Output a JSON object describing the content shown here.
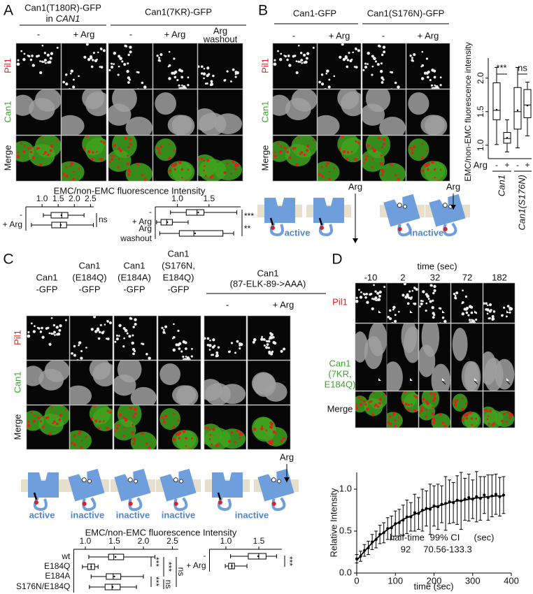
{
  "panel_A": {
    "letter": "A",
    "header1": [
      "Can1(T180R)-GFP",
      "in",
      "CAN1"
    ],
    "header2": "Can1(7KR)-GFP",
    "columns": [
      "-",
      "+ Arg",
      "-",
      "+ Arg"
    ],
    "header3": [
      "Arg",
      "washout"
    ],
    "rows": [
      "Pil1",
      "Can1",
      "Merge"
    ],
    "plot_title": "EMC/non-EMC fluorescence Intensity",
    "plots": [
      {
        "type": "box",
        "categories": [
          "-",
          "+ Arg"
        ],
        "xlim": [
          0.5,
          2.6
        ],
        "xticks": [
          {
            "value": 1,
            "label": "1.0"
          },
          1.5,
          {
            "value": 2,
            "label": "2.0"
          },
          2.5
        ],
        "boxes": [
          {
            "low": 1.04,
            "q1": 1.28,
            "median": 1.61,
            "q3": 1.8,
            "high": 2.3,
            "mean": 1.6
          },
          {
            "low": 0.67,
            "q1": 1.3,
            "median": 1.57,
            "q3": 1.76,
            "high": 2.59,
            "mean": 1.58
          }
        ],
        "annotations": [
          "ns"
        ]
      },
      {
        "type": "box",
        "categories": [
          "-",
          "+ Arg",
          [
            "Arg",
            "washout"
          ]
        ],
        "xlim": [
          0.65,
          2.0
        ],
        "xticks": [
          {
            "value": 1,
            "label": "1.0"
          },
          1.5
        ],
        "boxes": [
          {
            "low": 0.89,
            "q1": 1.14,
            "median": 1.31,
            "q3": 1.42,
            "high": 1.94,
            "mean": 1.33
          },
          {
            "low": 0.67,
            "q1": 0.74,
            "median": 0.83,
            "q3": 0.92,
            "high": 1.17,
            "mean": 0.84
          },
          {
            "low": 0.72,
            "q1": 1.03,
            "median": 1.26,
            "q3": 1.72,
            "high": 1.89,
            "mean": 1.28
          }
        ],
        "annotations": [
          "***",
          "**"
        ]
      }
    ]
  },
  "panel_B": {
    "letter": "B",
    "headers": [
      "Can1-GFP",
      "Can1(S176N)-GFP"
    ],
    "columns": [
      "-",
      "+ Arg",
      "-",
      "+ Arg"
    ],
    "rows": [
      "Pil1",
      "Can1",
      "Merge"
    ],
    "diagram": {
      "arg": [
        "Arg",
        "Arg"
      ],
      "labels": [
        "active",
        "inactive"
      ]
    },
    "plot": {
      "type": "box",
      "orientation": "vertical",
      "ylabel": "EMC/non-EMC fluorescence intensity",
      "ylim": [
        0.8,
        2.3
      ],
      "yticks": [
        {
          "value": 1,
          "label": "1.0"
        },
        1.5,
        {
          "value": 2,
          "label": "2.0"
        }
      ],
      "row_label": "Arg",
      "categories": [
        "-",
        "+",
        "-",
        "+"
      ],
      "groups": [
        "Can1",
        "Can1(S176N)"
      ],
      "boxes": [
        {
          "low": 1.01,
          "q1": 1.38,
          "median": 1.52,
          "q3": 1.93,
          "high": 2.16,
          "mean": 1.53
        },
        {
          "low": 0.9,
          "q1": 1.03,
          "median": 1.1,
          "q3": 1.19,
          "high": 1.38,
          "mean": 1.11
        },
        {
          "low": 0.96,
          "q1": 1.24,
          "median": 1.5,
          "q3": 1.86,
          "high": 2.16,
          "mean": 1.52
        },
        {
          "low": 1.14,
          "q1": 1.41,
          "median": 1.6,
          "q3": 1.83,
          "high": 1.94,
          "mean": 1.59
        }
      ],
      "annotations": [
        "***",
        "ns"
      ]
    }
  },
  "panel_C": {
    "letter": "C",
    "headers": [
      [
        "Can1",
        "-GFP"
      ],
      [
        "Can1",
        "(E184Q)",
        "-GFP"
      ],
      [
        "Can1",
        "(E184A)",
        "-GFP"
      ],
      [
        "Can1",
        "(S176N,",
        "E184Q)",
        "-GFP"
      ]
    ],
    "header5": [
      "Can1",
      "(87-ELK-89->AAA)"
    ],
    "columns": [
      "-",
      "+ Arg"
    ],
    "rows": [
      "Pil1",
      "Can1",
      "Merge"
    ],
    "diagram": {
      "arg": "Arg",
      "labels": [
        "active",
        "inactive",
        "inactive",
        "inactive",
        "inactive"
      ]
    },
    "plot_title": "EMC/non-EMC fluorescence Intensity",
    "plots": [
      {
        "type": "box",
        "categories": [
          "wt",
          "E184Q",
          "E184A",
          "S176N/E184Q"
        ],
        "xlim": [
          0.8,
          2.6
        ],
        "xticks": [
          {
            "value": 1,
            "label": "1.0"
          },
          1.5,
          {
            "value": 2,
            "label": "2.0"
          },
          2.5
        ],
        "boxes": [
          {
            "low": 1.06,
            "q1": 1.4,
            "median": 1.49,
            "q3": 1.66,
            "high": 2.2,
            "mean": 1.52
          },
          {
            "low": 0.95,
            "q1": 1.04,
            "median": 1.1,
            "q3": 1.16,
            "high": 1.22,
            "mean": 1.1
          },
          {
            "low": 1.1,
            "q1": 1.36,
            "median": 1.48,
            "q3": 1.61,
            "high": 2.0,
            "mean": 1.5
          },
          {
            "low": 1.07,
            "q1": 1.34,
            "median": 1.46,
            "q3": 1.6,
            "high": 1.88,
            "mean": 1.47
          }
        ],
        "annotations": [
          "***",
          "***",
          "ns",
          "***",
          "ns"
        ]
      },
      {
        "type": "box",
        "categories": [
          "-",
          "+ Arg"
        ],
        "xlim": [
          0.75,
          1.85
        ],
        "xticks": [
          {
            "value": 1,
            "label": "1.0"
          },
          1.5
        ],
        "boxes": [
          {
            "low": 1.07,
            "q1": 1.34,
            "median": 1.5,
            "q3": 1.61,
            "high": 1.77,
            "mean": 1.49
          },
          {
            "low": 0.99,
            "q1": 1.04,
            "median": 1.09,
            "q3": 1.13,
            "high": 1.32,
            "mean": 1.09
          }
        ],
        "annotations": [
          "***"
        ]
      }
    ]
  },
  "panel_D": {
    "letter": "D",
    "time_label": "time (sec)",
    "times": [
      -10,
      2,
      32,
      72,
      182
    ],
    "rows": [
      [
        "Pil1"
      ],
      [
        "Can1",
        "(7KR,",
        "E184Q)"
      ],
      [
        "Merge"
      ]
    ],
    "chart": {
      "type": "errorbar",
      "xlabel": "time (sec)",
      "ylabel": "Relative Intensity",
      "xlim": [
        0,
        400
      ],
      "xticks": [
        0,
        100,
        200,
        300,
        400
      ],
      "ylim": [
        0,
        1.2
      ],
      "yticks": [
        {
          "value": 0,
          "label": "0.0"
        },
        0.5,
        {
          "value": 1,
          "label": "1.0"
        }
      ],
      "x": [
        0,
        10,
        20,
        30,
        40,
        50,
        60,
        70,
        80,
        90,
        100,
        110,
        120,
        130,
        140,
        150,
        160,
        170,
        180,
        190,
        200,
        210,
        220,
        230,
        240,
        250,
        260,
        270,
        280,
        290,
        300,
        310,
        320,
        330,
        340,
        350,
        360,
        370,
        380
      ],
      "values": [
        0.17,
        0.2,
        0.27,
        0.3,
        0.37,
        0.4,
        0.46,
        0.48,
        0.53,
        0.54,
        0.59,
        0.6,
        0.63,
        0.67,
        0.67,
        0.72,
        0.71,
        0.75,
        0.77,
        0.76,
        0.8,
        0.79,
        0.82,
        0.83,
        0.85,
        0.84,
        0.87,
        0.86,
        0.88,
        0.9,
        0.88,
        0.91,
        0.89,
        0.93,
        0.9,
        0.92,
        0.94,
        0.91,
        0.93
      ],
      "errors": [
        0.05,
        0.06,
        0.07,
        0.08,
        0.09,
        0.1,
        0.11,
        0.12,
        0.13,
        0.14,
        0.15,
        0.16,
        0.18,
        0.2,
        0.17,
        0.22,
        0.19,
        0.25,
        0.21,
        0.3,
        0.24,
        0.27,
        0.22,
        0.32,
        0.26,
        0.24,
        0.29,
        0.34,
        0.25,
        0.28,
        0.23,
        0.3,
        0.26,
        0.22,
        0.27,
        0.25,
        0.24,
        0.23,
        0.22
      ],
      "fit": {
        "x": [
          0,
          20,
          40,
          60,
          80,
          100,
          120,
          140,
          160,
          180,
          200,
          220,
          240,
          260,
          280,
          300,
          320,
          340,
          360,
          380
        ],
        "values": [
          0.15,
          0.26,
          0.36,
          0.45,
          0.52,
          0.58,
          0.64,
          0.68,
          0.72,
          0.76,
          0.79,
          0.81,
          0.84,
          0.86,
          0.87,
          0.89,
          0.9,
          0.91,
          0.92,
          0.92
        ]
      },
      "annotations": {
        "half_time_label": "half-time",
        "ci_label": "99% CI",
        "unit_label": "(sec)",
        "half_time": 92,
        "ci": "70.56-133.3"
      }
    }
  }
}
